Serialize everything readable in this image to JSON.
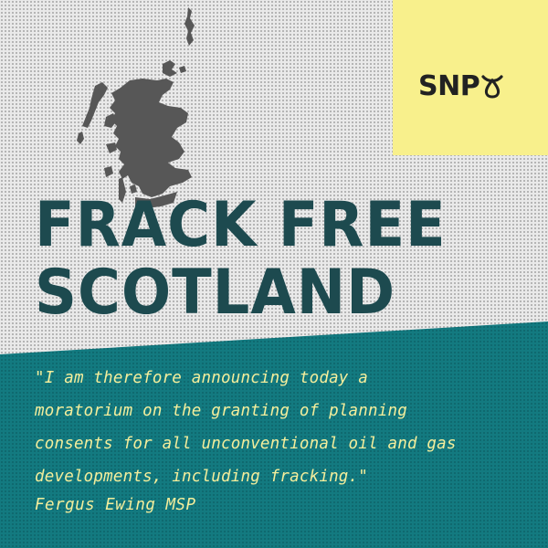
{
  "logo": {
    "text": "SNP",
    "icon": "snp-emblem-icon"
  },
  "headline": {
    "line1": "FRACK FREE",
    "line2": "SCOTLAND"
  },
  "quote": {
    "lines": [
      "\"I am therefore announcing today a",
      "moratorium on the granting of planning",
      "consents for all unconventional oil and gas",
      "developments, including fracking.\""
    ],
    "attribution": "Fergus Ewing MSP"
  },
  "colors": {
    "background": "#e9e9e9",
    "headline": "#1d4a4f",
    "teal_panel": "#137a80",
    "logo_box": "#f8f08c",
    "quote_text": "#f4ee9c",
    "map": "#555555"
  },
  "map": {
    "icon": "scotland-map-icon"
  }
}
